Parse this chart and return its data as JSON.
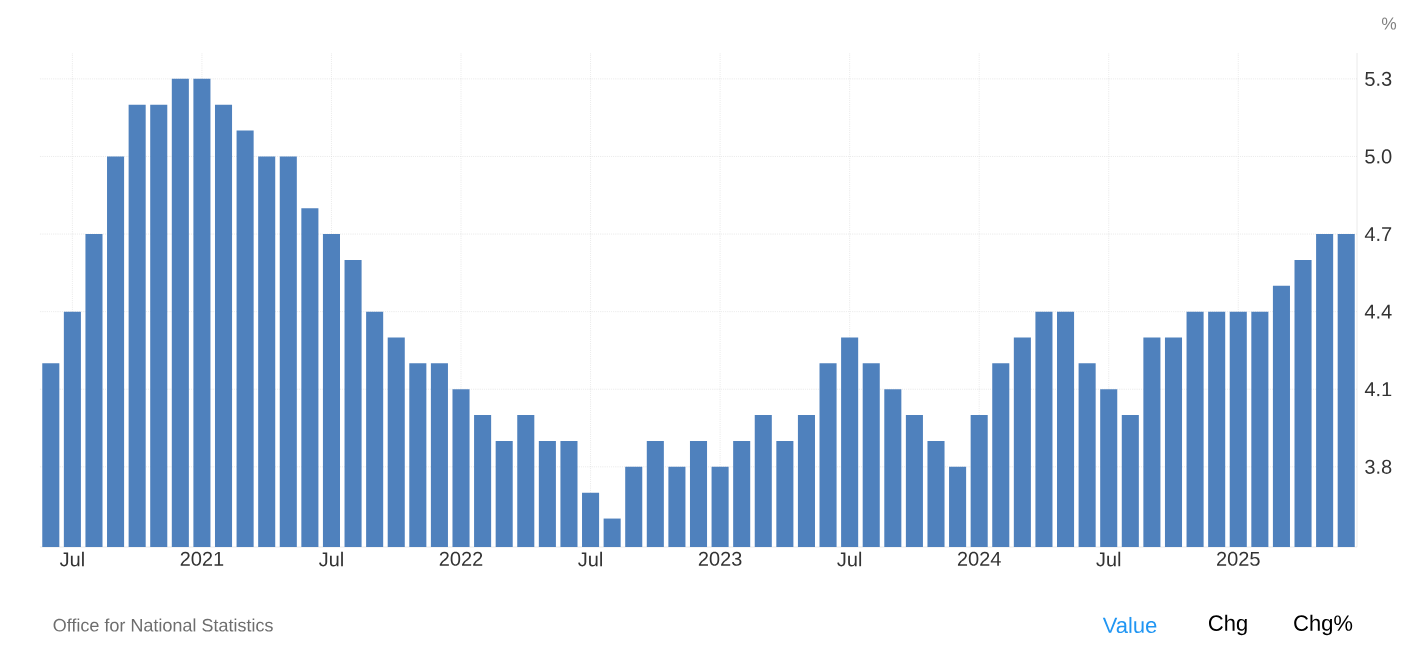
{
  "chart_data": {
    "type": "bar",
    "ylabel": "%",
    "categories": [
      null,
      "Jul",
      null,
      null,
      null,
      null,
      null,
      "2021",
      null,
      null,
      null,
      null,
      null,
      "Jul",
      null,
      null,
      null,
      null,
      null,
      "2022",
      null,
      null,
      null,
      null,
      null,
      "Jul",
      null,
      null,
      null,
      null,
      null,
      "2023",
      null,
      null,
      null,
      null,
      null,
      "Jul",
      null,
      null,
      null,
      null,
      null,
      "2024",
      null,
      null,
      null,
      null,
      null,
      "Jul",
      null,
      null,
      null,
      null,
      null,
      "2025",
      null,
      null,
      null,
      null,
      null
    ],
    "values": [
      4.2,
      4.4,
      4.7,
      5.0,
      5.2,
      5.2,
      5.3,
      5.3,
      5.2,
      5.1,
      5.0,
      5.0,
      4.8,
      4.7,
      4.6,
      4.4,
      4.3,
      4.2,
      4.2,
      4.1,
      4.0,
      3.9,
      4.0,
      3.9,
      3.9,
      3.7,
      3.6,
      3.8,
      3.9,
      3.8,
      3.9,
      3.8,
      3.9,
      4.0,
      3.9,
      4.0,
      4.2,
      4.3,
      4.2,
      4.1,
      4.0,
      3.9,
      3.8,
      4.0,
      4.2,
      4.3,
      4.4,
      4.4,
      4.2,
      4.1,
      4.0,
      4.3,
      4.3,
      4.4,
      4.4,
      4.4,
      4.4,
      4.5,
      4.6,
      4.7,
      4.7
    ],
    "color": "#4f81bd",
    "ylim": [
      3.49,
      5.4
    ],
    "yticks": [
      3.8,
      4.1,
      4.4,
      4.7,
      {
        "value": 5.0,
        "label": "5.0"
      },
      5.3
    ],
    "grid": true,
    "annotations": [
      "Office for National Statistics",
      "Value",
      "Chg",
      "Chg%"
    ]
  }
}
